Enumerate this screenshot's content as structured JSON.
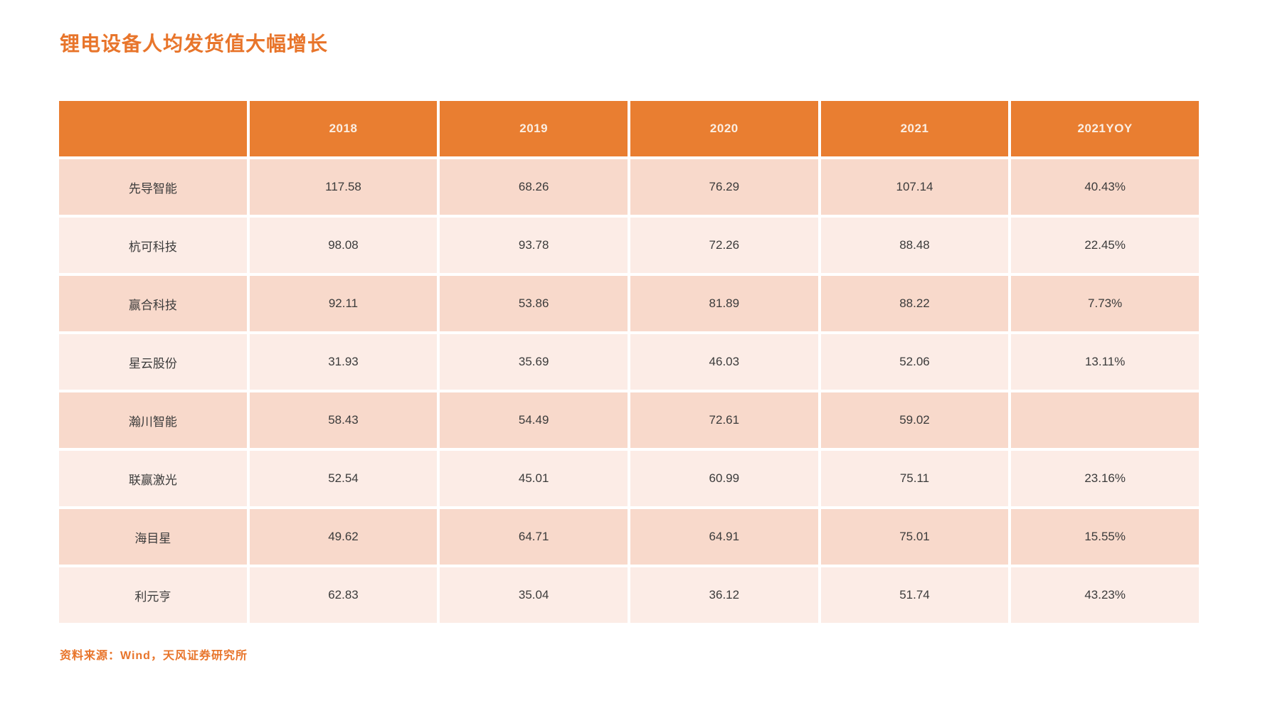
{
  "title": "锂电设备人均发货值大幅增长",
  "source_note": "资料来源：Wind，天风证券研究所",
  "colors": {
    "header_bg": "#e97e31",
    "header_text": "#fbeee2",
    "row_dark": "#f8d9cb",
    "row_light": "#fcece6",
    "title": "#e8752b",
    "source": "#e8752b",
    "cell_text": "#3b3b3b"
  },
  "chart_data": {
    "type": "table",
    "title": "锂电设备人均发货值大幅增长",
    "columns": [
      "",
      "2018",
      "2019",
      "2020",
      "2021",
      "2021YOY"
    ],
    "rows": [
      {
        "name": "先导智能",
        "values": [
          "117.58",
          "68.26",
          "76.29",
          "107.14",
          "40.43%"
        ]
      },
      {
        "name": "杭可科技",
        "values": [
          "98.08",
          "93.78",
          "72.26",
          "88.48",
          "22.45%"
        ]
      },
      {
        "name": "赢合科技",
        "values": [
          "92.11",
          "53.86",
          "81.89",
          "88.22",
          "7.73%"
        ]
      },
      {
        "name": "星云股份",
        "values": [
          "31.93",
          "35.69",
          "46.03",
          "52.06",
          "13.11%"
        ]
      },
      {
        "name": "瀚川智能",
        "values": [
          "58.43",
          "54.49",
          "72.61",
          "59.02",
          ""
        ]
      },
      {
        "name": "联赢激光",
        "values": [
          "52.54",
          "45.01",
          "60.99",
          "75.11",
          "23.16%"
        ]
      },
      {
        "name": "海目星",
        "values": [
          "49.62",
          "64.71",
          "64.91",
          "75.01",
          "15.55%"
        ]
      },
      {
        "name": "利元亨",
        "values": [
          "62.83",
          "35.04",
          "36.12",
          "51.74",
          "43.23%"
        ]
      }
    ],
    "source": "资料来源：Wind，天风证券研究所",
    "legend_position": "none",
    "grid": false
  }
}
